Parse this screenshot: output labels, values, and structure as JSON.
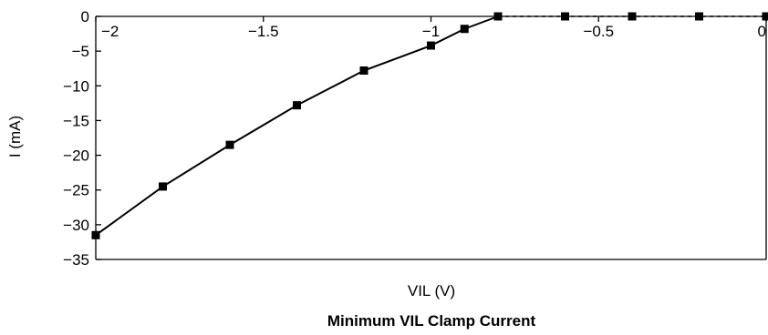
{
  "chart_data": {
    "type": "line",
    "title": "Minimum VIL Clamp Current",
    "xlabel": "VIL (V)",
    "ylabel": "I (mA)",
    "xlim": [
      -2,
      0
    ],
    "ylim": [
      -35,
      0
    ],
    "x_ticks": [
      -2,
      -1.5,
      -1,
      -0.5,
      0
    ],
    "x_tick_labels": [
      "−2",
      "−1.5",
      "−1",
      "−0.5",
      "0"
    ],
    "y_ticks": [
      0,
      -5,
      -10,
      -15,
      -20,
      -25,
      -30,
      -35
    ],
    "y_tick_labels": [
      "0",
      "−5",
      "−10",
      "−15",
      "−20",
      "−25",
      "−30",
      "−35"
    ],
    "x_axis_position": "top (at y = 0)",
    "grid": false,
    "marker": "square",
    "line_color": "#000000",
    "series": [
      {
        "x": [
          -2.0,
          -1.8,
          -1.6,
          -1.4,
          -1.2,
          -1.0,
          -0.9,
          -0.8,
          -0.6,
          -0.4,
          -0.2,
          0.0
        ],
        "values": [
          -31.5,
          -24.5,
          -18.5,
          -12.8,
          -7.8,
          -4.2,
          -1.8,
          0,
          0,
          0,
          0,
          0
        ],
        "solid_until_index": 7
      }
    ]
  }
}
